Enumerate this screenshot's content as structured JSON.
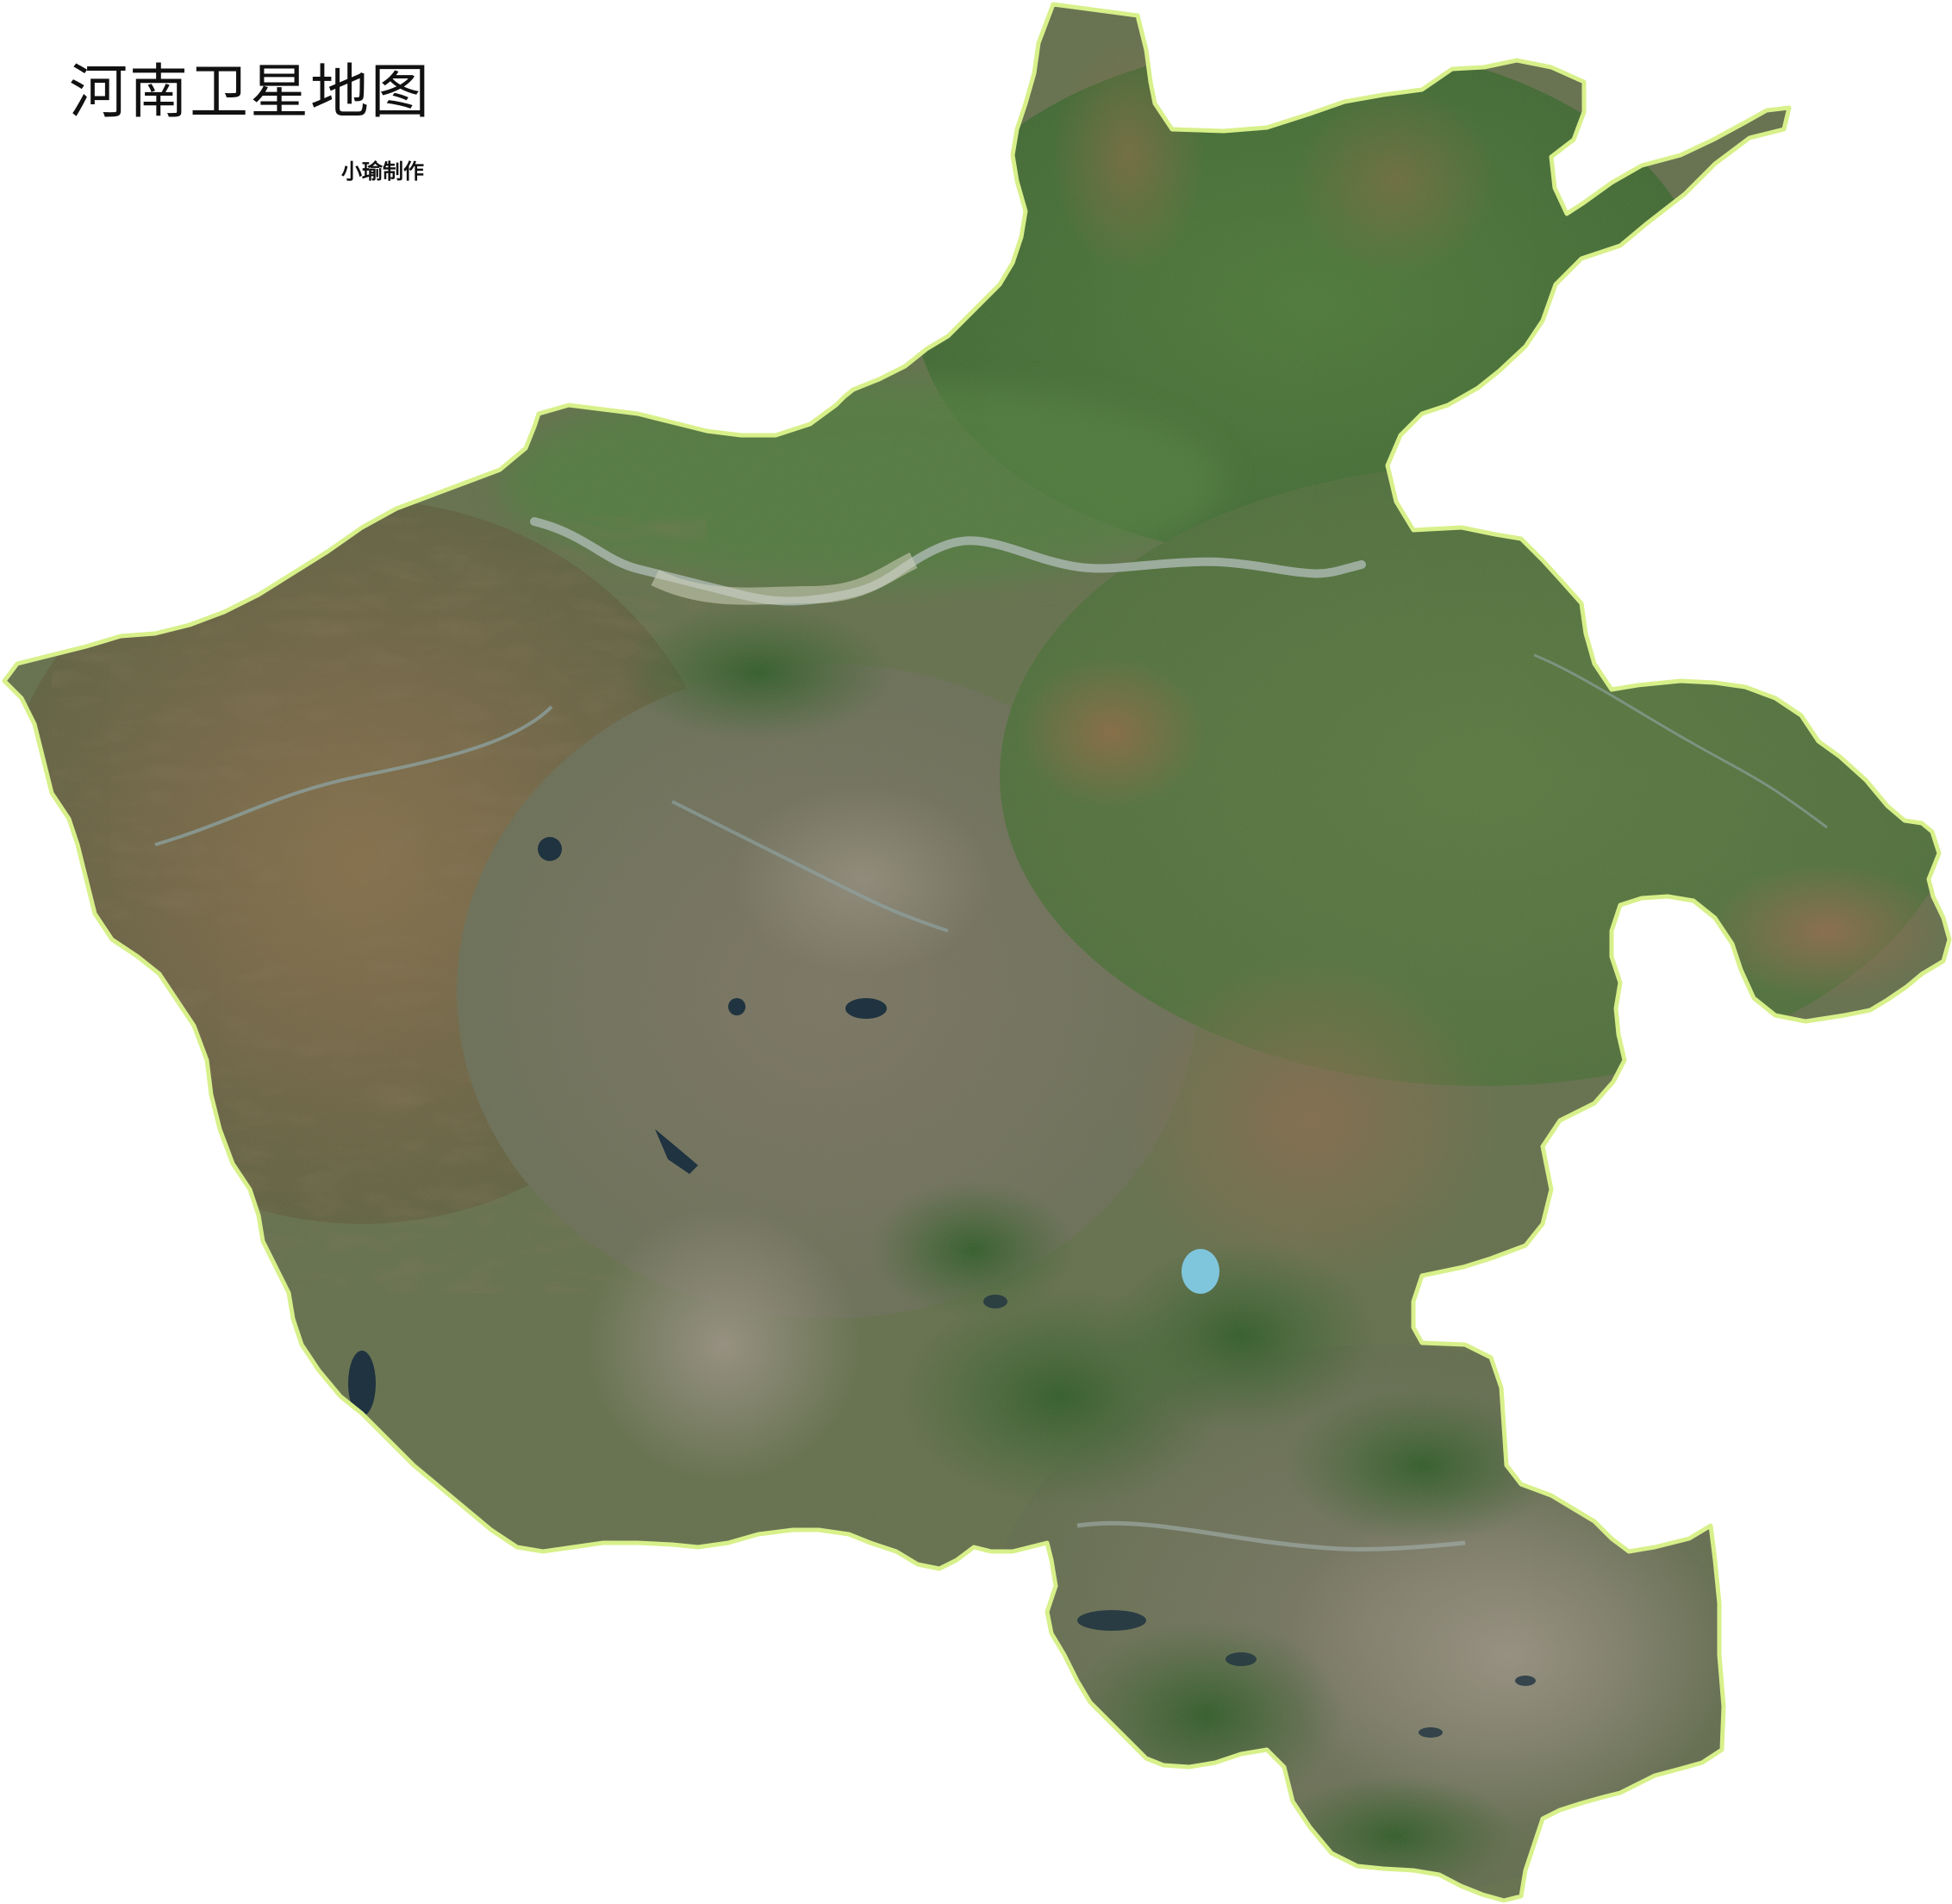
{
  "map": {
    "title": "河南卫星地图",
    "credit": "小瑜制作",
    "type": "satellite imagery of a single province",
    "colors": {
      "background": "#ffffff",
      "border": "#d8f08a",
      "plain_green": "#4d7a37",
      "forest_green": "#355f2a",
      "mountain_brown": "#7a6a4a",
      "arid_tan": "#8c7d62",
      "reservoir_blue": "#1f3340",
      "light_lake": "#7fc6dc",
      "river": "#8fa6a8"
    }
  }
}
